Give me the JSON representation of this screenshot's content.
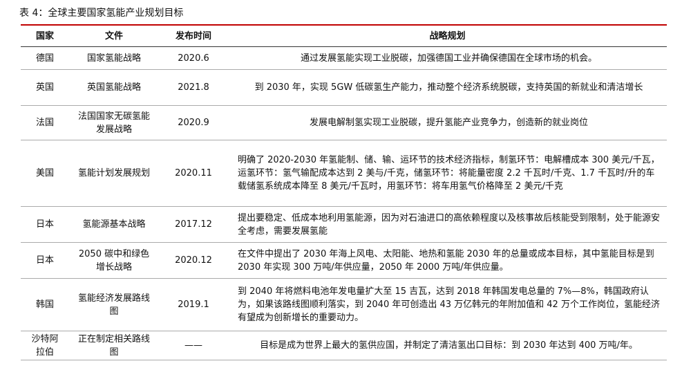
{
  "title": "表 4：全球主要国家氢能产业规划目标",
  "table": {
    "header": [
      "国家",
      "文件",
      "发布时间",
      "战略规划"
    ],
    "rows": [
      [
        "德国",
        "国家氢能战略",
        "2020.6",
        "通过发展氢能实现工业脱碳，加强德国工业并确保德国在全球市场的机会。"
      ],
      [
        "英国",
        "英国氢能战略",
        "2021.8",
        "到 2030 年，实现 5GW 低碳氢生产能力，推动整个经济系统脱碳，支持英国的新就业和清洁增长"
      ],
      [
        "法国",
        "法国国家无碳氢能发展战略",
        "2020.9",
        "发展电解制氢实现工业脱碳，提升氢能产业竞争力，创造新的就业岗位"
      ],
      [
        "美国",
        "氢能计划发展规划",
        "2020.11",
        "明确了 2020-2030 年氢能制、储、输、运环节的技术经济指标，制氢环节：电解槽成本 300 美元/千瓦，运氢环节：氢气输配成本达到 2 美与/千克，储氢环节：将能量密度 2.2 千瓦时/千克、1.7 千瓦时/升的车载储氢系统成本降至 8 美元/千瓦时，用氢环节：将车用氢气价格降至 2 美元/千克"
      ],
      [
        "日本",
        "氢能源基本战略",
        "2017.12",
        "提出要稳定、低成本地利用氢能源，因为对石油进口的高依赖程度以及核事故后核能受到限制，处于能源安全考虑，需要发展氢能"
      ],
      [
        "日本",
        "2050 碳中和绿色增长战略",
        "2020.12",
        "在文件中提出了 2030 年海上风电、太阳能、地热和氢能 2030 年的总量或成本目标，其中氢能目标是到 2030 年实现 300 万吨/年供应量，2050 年 2000 万吨/年供应量。"
      ],
      [
        "韩国",
        "氢能经济发展路线图",
        "2019.1",
        "到 2040 年将燃料电池年发电量扩大至 15 吉瓦，达到 2018 年韩国发电总量的 7%—8%，韩国政府认为，如果该路线图顺利落实，到 2040 年可创造出 43 万亿韩元的年附加值和 42 万个工作岗位，氢能经济有望成为创新增长的重要动力。"
      ],
      [
        "沙特阿拉伯",
        "正在制定相关路线图",
        "——",
        "目标是成为世界上最大的氢供应国，并制定了清洁氢出口目标：到 2030 年达到 400 万吨/年。"
      ]
    ]
  }
}
